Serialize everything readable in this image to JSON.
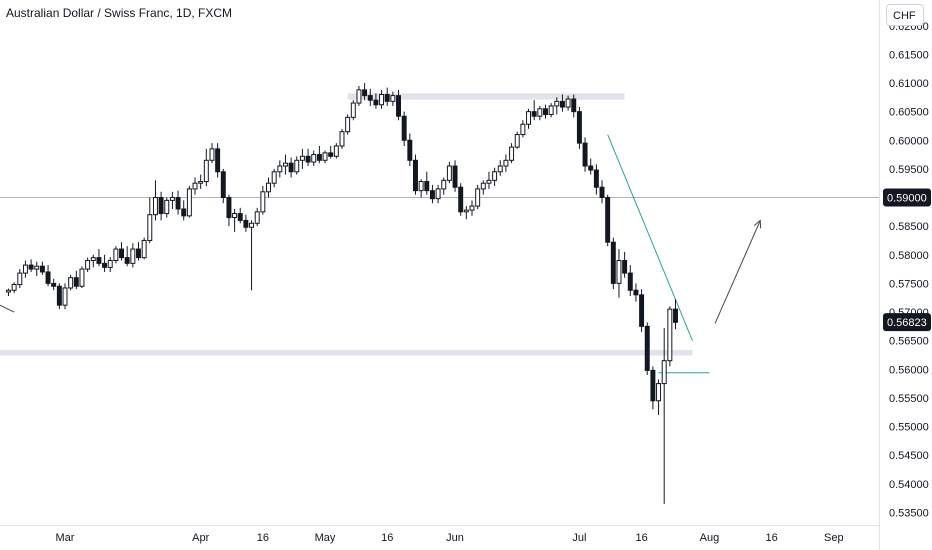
{
  "header": {
    "title": "Australian Dollar / Swiss Franc, 1D, FXCM"
  },
  "currency_button": {
    "label": "CHF"
  },
  "colors": {
    "bull_body": "#ffffff",
    "bear_body": "#131722",
    "wick": "#131722",
    "zone": "#e0e3eb",
    "trendline": "#26a69a",
    "arrow": "#434651",
    "hline": "#b2b5be"
  },
  "price_labels": [
    {
      "id": "hline",
      "value": "0.59000"
    },
    {
      "id": "last",
      "value": "0.56823"
    }
  ],
  "chart_data": {
    "type": "candlestick",
    "symbol": "Australian Dollar / Swiss Franc",
    "timeframe": "1D",
    "source": "FXCM",
    "y_range": [
      0.5328,
      0.6245
    ],
    "y_ticks": [
      "0.62000",
      "0.61500",
      "0.61000",
      "0.60500",
      "0.60000",
      "0.59500",
      "0.59000",
      "0.58500",
      "0.58000",
      "0.57500",
      "0.57000",
      "0.56500",
      "0.56000",
      "0.55500",
      "0.55000",
      "0.54500",
      "0.54000",
      "0.53500"
    ],
    "x_ticks": [
      "Mar",
      "Apr",
      "16",
      "May",
      "16",
      "Jun",
      "Jul",
      "16",
      "Aug",
      "16",
      "Sep"
    ],
    "x_tick_index": [
      10,
      34,
      45,
      56,
      67,
      79,
      101,
      112,
      124,
      135,
      146
    ],
    "x_range_index": [
      -1.5,
      154
    ],
    "candles": [
      [
        0.5735,
        0.5741,
        0.5728,
        0.5738
      ],
      [
        0.5738,
        0.5752,
        0.5733,
        0.5748
      ],
      [
        0.5748,
        0.5775,
        0.5742,
        0.5768
      ],
      [
        0.5768,
        0.579,
        0.576,
        0.5782
      ],
      [
        0.5782,
        0.5792,
        0.577,
        0.5775
      ],
      [
        0.5775,
        0.5788,
        0.5763,
        0.578
      ],
      [
        0.578,
        0.5788,
        0.5765,
        0.577
      ],
      [
        0.577,
        0.5782,
        0.5745,
        0.575
      ],
      [
        0.575,
        0.5758,
        0.5738,
        0.5745
      ],
      [
        0.5745,
        0.575,
        0.5705,
        0.5712
      ],
      [
        0.5712,
        0.575,
        0.5705,
        0.5742
      ],
      [
        0.5742,
        0.5765,
        0.5738,
        0.576
      ],
      [
        0.576,
        0.5772,
        0.574,
        0.5745
      ],
      [
        0.5745,
        0.578,
        0.5742,
        0.5775
      ],
      [
        0.5775,
        0.5795,
        0.577,
        0.579
      ],
      [
        0.579,
        0.58,
        0.5778,
        0.5795
      ],
      [
        0.5795,
        0.581,
        0.578,
        0.5785
      ],
      [
        0.5785,
        0.58,
        0.577,
        0.5778
      ],
      [
        0.5778,
        0.5796,
        0.577,
        0.579
      ],
      [
        0.579,
        0.5815,
        0.5785,
        0.581
      ],
      [
        0.581,
        0.5822,
        0.579,
        0.5795
      ],
      [
        0.5795,
        0.5815,
        0.578,
        0.5785
      ],
      [
        0.5785,
        0.582,
        0.5778,
        0.581
      ],
      [
        0.581,
        0.5822,
        0.579,
        0.5795
      ],
      [
        0.5795,
        0.583,
        0.5792,
        0.5825
      ],
      [
        0.5825,
        0.59,
        0.582,
        0.587
      ],
      [
        0.587,
        0.593,
        0.586,
        0.59
      ],
      [
        0.59,
        0.591,
        0.586,
        0.5872
      ],
      [
        0.5872,
        0.59,
        0.5865,
        0.5895
      ],
      [
        0.5895,
        0.591,
        0.588,
        0.59
      ],
      [
        0.59,
        0.5912,
        0.587,
        0.588
      ],
      [
        0.588,
        0.5895,
        0.586,
        0.5868
      ],
      [
        0.5868,
        0.592,
        0.5865,
        0.5915
      ],
      [
        0.5915,
        0.5935,
        0.5905,
        0.5925
      ],
      [
        0.5925,
        0.594,
        0.5915,
        0.5928
      ],
      [
        0.5928,
        0.5985,
        0.592,
        0.5965
      ],
      [
        0.5965,
        0.5995,
        0.596,
        0.5985
      ],
      [
        0.5985,
        0.5995,
        0.5935,
        0.5945
      ],
      [
        0.5945,
        0.595,
        0.589,
        0.59
      ],
      [
        0.59,
        0.5905,
        0.585,
        0.5865
      ],
      [
        0.5865,
        0.588,
        0.584,
        0.5872
      ],
      [
        0.5872,
        0.5882,
        0.5855,
        0.586
      ],
      [
        0.586,
        0.587,
        0.584,
        0.5848
      ],
      [
        0.5848,
        0.586,
        0.5738,
        0.5855
      ],
      [
        0.5855,
        0.5882,
        0.585,
        0.5875
      ],
      [
        0.5875,
        0.592,
        0.587,
        0.591
      ],
      [
        0.591,
        0.5935,
        0.59,
        0.5925
      ],
      [
        0.5925,
        0.595,
        0.5918,
        0.5945
      ],
      [
        0.5945,
        0.5965,
        0.5935,
        0.5955
      ],
      [
        0.5955,
        0.5975,
        0.594,
        0.596
      ],
      [
        0.596,
        0.597,
        0.5935,
        0.5945
      ],
      [
        0.5945,
        0.5972,
        0.594,
        0.5965
      ],
      [
        0.5965,
        0.5985,
        0.595,
        0.5972
      ],
      [
        0.5972,
        0.5985,
        0.5955,
        0.5962
      ],
      [
        0.5962,
        0.5982,
        0.5955,
        0.5975
      ],
      [
        0.5975,
        0.599,
        0.596,
        0.5965
      ],
      [
        0.5965,
        0.5982,
        0.596,
        0.5978
      ],
      [
        0.5978,
        0.599,
        0.5968,
        0.5972
      ],
      [
        0.5972,
        0.5995,
        0.5968,
        0.599
      ],
      [
        0.599,
        0.602,
        0.5985,
        0.6015
      ],
      [
        0.6015,
        0.6045,
        0.601,
        0.604
      ],
      [
        0.604,
        0.607,
        0.6035,
        0.6065
      ],
      [
        0.6065,
        0.6095,
        0.606,
        0.6088
      ],
      [
        0.6088,
        0.61,
        0.607,
        0.6078
      ],
      [
        0.6078,
        0.609,
        0.606,
        0.607
      ],
      [
        0.607,
        0.6082,
        0.6055,
        0.6062
      ],
      [
        0.6062,
        0.6088,
        0.6055,
        0.608
      ],
      [
        0.608,
        0.6092,
        0.606,
        0.6068
      ],
      [
        0.6068,
        0.6085,
        0.606,
        0.6078
      ],
      [
        0.6078,
        0.6088,
        0.6035,
        0.6042
      ],
      [
        0.6042,
        0.605,
        0.599,
        0.6
      ],
      [
        0.6,
        0.6012,
        0.5955,
        0.5965
      ],
      [
        0.5965,
        0.5975,
        0.5905,
        0.5912
      ],
      [
        0.5912,
        0.5932,
        0.59,
        0.5928
      ],
      [
        0.5928,
        0.5945,
        0.5905,
        0.5912
      ],
      [
        0.5912,
        0.5922,
        0.589,
        0.5898
      ],
      [
        0.5898,
        0.5922,
        0.589,
        0.5915
      ],
      [
        0.5915,
        0.5935,
        0.5905,
        0.593
      ],
      [
        0.593,
        0.5962,
        0.5925,
        0.5955
      ],
      [
        0.5955,
        0.5965,
        0.591,
        0.5918
      ],
      [
        0.5918,
        0.5925,
        0.5868,
        0.5875
      ],
      [
        0.5875,
        0.5885,
        0.5862,
        0.5878
      ],
      [
        0.5878,
        0.5895,
        0.5868,
        0.5885
      ],
      [
        0.5885,
        0.5922,
        0.588,
        0.5915
      ],
      [
        0.5915,
        0.593,
        0.5905,
        0.5925
      ],
      [
        0.5925,
        0.5945,
        0.5915,
        0.593
      ],
      [
        0.593,
        0.5952,
        0.592,
        0.5945
      ],
      [
        0.5945,
        0.5965,
        0.5938,
        0.5955
      ],
      [
        0.5955,
        0.5975,
        0.5945,
        0.5965
      ],
      [
        0.5965,
        0.5995,
        0.596,
        0.5988
      ],
      [
        0.5988,
        0.6015,
        0.5985,
        0.601
      ],
      [
        0.601,
        0.6035,
        0.6005,
        0.6028
      ],
      [
        0.6028,
        0.6055,
        0.602,
        0.605
      ],
      [
        0.605,
        0.607,
        0.6035,
        0.6042
      ],
      [
        0.6042,
        0.606,
        0.6035,
        0.6055
      ],
      [
        0.6055,
        0.6062,
        0.6038,
        0.6045
      ],
      [
        0.6045,
        0.6065,
        0.604,
        0.606
      ],
      [
        0.606,
        0.6075,
        0.6045,
        0.6068
      ],
      [
        0.6068,
        0.608,
        0.605,
        0.6058
      ],
      [
        0.6058,
        0.6078,
        0.6052,
        0.6072
      ],
      [
        0.6072,
        0.608,
        0.604,
        0.605
      ],
      [
        0.605,
        0.6058,
        0.5985,
        0.5995
      ],
      [
        0.5995,
        0.6005,
        0.5945,
        0.5955
      ],
      [
        0.5955,
        0.5968,
        0.594,
        0.5948
      ],
      [
        0.5948,
        0.5958,
        0.5905,
        0.5918
      ],
      [
        0.5918,
        0.593,
        0.589,
        0.59
      ],
      [
        0.59,
        0.5905,
        0.5815,
        0.5822
      ],
      [
        0.5822,
        0.583,
        0.574,
        0.575
      ],
      [
        0.575,
        0.581,
        0.5725,
        0.579
      ],
      [
        0.579,
        0.5805,
        0.576,
        0.5768
      ],
      [
        0.5768,
        0.5782,
        0.5728,
        0.5738
      ],
      [
        0.5738,
        0.575,
        0.5718,
        0.573
      ],
      [
        0.573,
        0.574,
        0.5665,
        0.5675
      ],
      [
        0.5675,
        0.5682,
        0.559,
        0.5598
      ],
      [
        0.5598,
        0.5605,
        0.553,
        0.5545
      ],
      [
        0.5545,
        0.5582,
        0.552,
        0.5575
      ],
      [
        0.5575,
        0.5672,
        0.5365,
        0.5615
      ],
      [
        0.5615,
        0.571,
        0.5605,
        0.5705
      ],
      [
        0.5705,
        0.5722,
        0.567,
        0.5682
      ]
    ]
  },
  "annotations": {
    "zones": [
      {
        "start_index": 60,
        "end_index": 109,
        "low": 0.6071,
        "high": 0.6082
      },
      {
        "start_index": -1.5,
        "end_index": 121,
        "low": 0.5624,
        "high": 0.5634
      }
    ],
    "horizontal_line": {
      "value": 0.59
    },
    "trendline": {
      "from": [
        106,
        0.601
      ],
      "to": [
        121,
        0.565
      ]
    },
    "neckline": {
      "from": [
        115,
        0.5594
      ],
      "to": [
        124,
        0.5594
      ]
    },
    "projection_arrow": {
      "from": [
        125,
        0.568
      ],
      "to": [
        133,
        0.586
      ]
    }
  }
}
